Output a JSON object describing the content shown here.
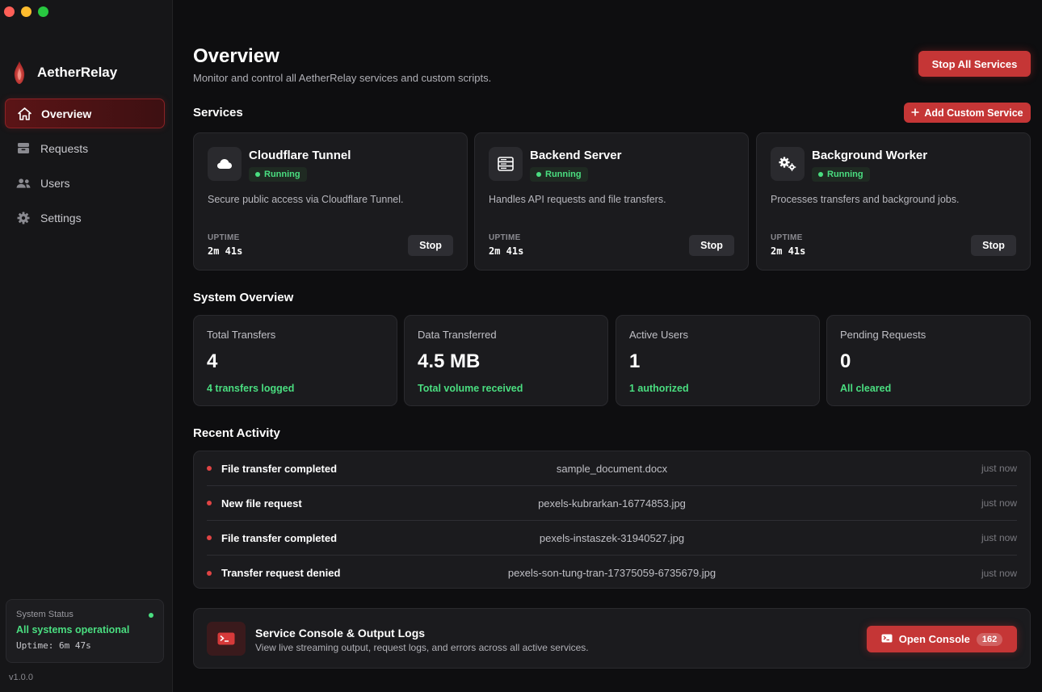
{
  "app": {
    "name": "AetherRelay",
    "version": "v1.0.0"
  },
  "sidebar": {
    "items": [
      {
        "label": "Overview",
        "icon": "home-icon",
        "active": true
      },
      {
        "label": "Requests",
        "icon": "inbox-icon",
        "active": false
      },
      {
        "label": "Users",
        "icon": "users-icon",
        "active": false
      },
      {
        "label": "Settings",
        "icon": "gear-icon",
        "active": false
      }
    ],
    "status": {
      "title": "System Status",
      "message": "All systems operational",
      "uptime": "Uptime: 6m 47s"
    }
  },
  "header": {
    "title": "Overview",
    "subtitle": "Monitor and control all AetherRelay services and custom scripts.",
    "stop_all_label": "Stop All Services"
  },
  "services": {
    "title": "Services",
    "add_label": "Add Custom Service",
    "items": [
      {
        "name": "Cloudflare Tunnel",
        "status": "Running",
        "description": "Secure public access via Cloudflare Tunnel.",
        "uptime_label": "UPTIME",
        "uptime": "2m 41s",
        "stop_label": "Stop",
        "icon": "cloud-icon"
      },
      {
        "name": "Backend Server",
        "status": "Running",
        "description": "Handles API requests and file transfers.",
        "uptime_label": "UPTIME",
        "uptime": "2m 41s",
        "stop_label": "Stop",
        "icon": "server-icon"
      },
      {
        "name": "Background Worker",
        "status": "Running",
        "description": "Processes transfers and background jobs.",
        "uptime_label": "UPTIME",
        "uptime": "2m 41s",
        "stop_label": "Stop",
        "icon": "gears-icon"
      }
    ]
  },
  "system_overview": {
    "title": "System Overview",
    "stats": [
      {
        "label": "Total Transfers",
        "value": "4",
        "sub": "4 transfers logged"
      },
      {
        "label": "Data Transferred",
        "value": "4.5 MB",
        "sub": "Total volume received"
      },
      {
        "label": "Active Users",
        "value": "1",
        "sub": "1 authorized"
      },
      {
        "label": "Pending Requests",
        "value": "0",
        "sub": "All cleared"
      }
    ]
  },
  "activity": {
    "title": "Recent Activity",
    "items": [
      {
        "title": "File transfer completed",
        "file": "sample_document.docx",
        "time": "just now"
      },
      {
        "title": "New file request",
        "file": "pexels-kubrarkan-16774853.jpg",
        "time": "just now"
      },
      {
        "title": "File transfer completed",
        "file": "pexels-instaszek-31940527.jpg",
        "time": "just now"
      },
      {
        "title": "Transfer request denied",
        "file": "pexels-son-tung-tran-17375059-6735679.jpg",
        "time": "just now"
      }
    ]
  },
  "console": {
    "title": "Service Console & Output Logs",
    "subtitle": "View live streaming output, request logs, and errors across all active services.",
    "button_label": "Open Console",
    "count": "162"
  },
  "colors": {
    "accent": "#c53636",
    "success": "#4ade80",
    "background": "#0e0e10"
  }
}
